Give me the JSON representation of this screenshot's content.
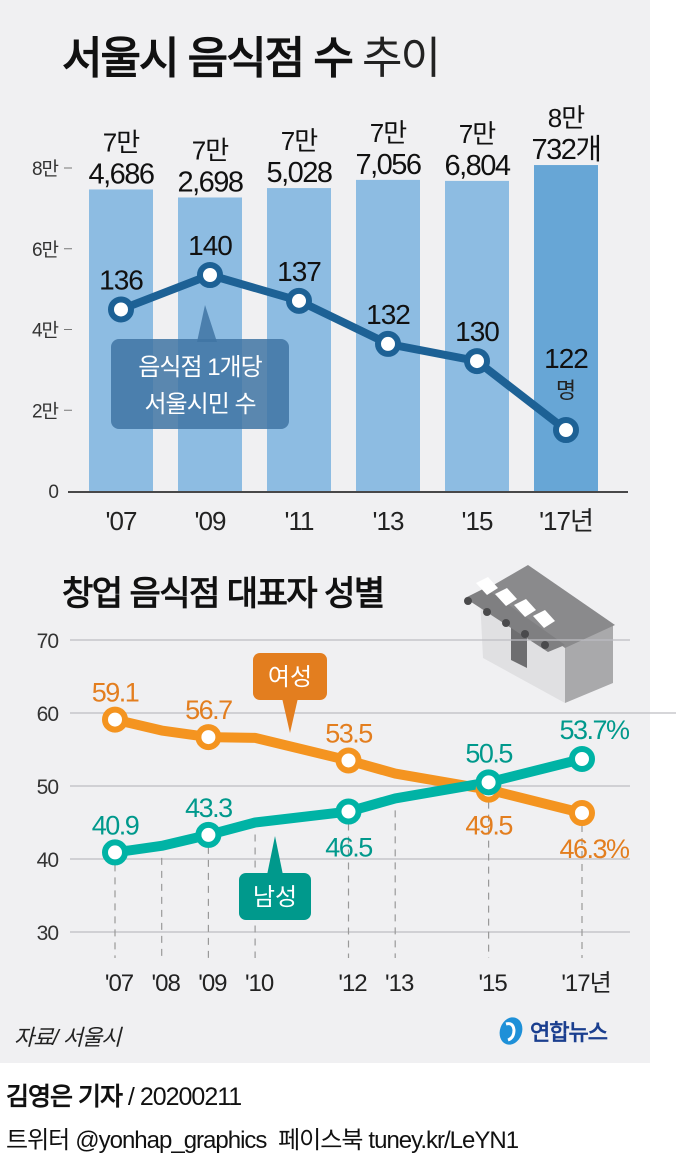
{
  "header": {
    "title_bold": "서울시 음식점 수",
    "title_light": "추이",
    "subtitle": "창업 음식점 대표자 성별"
  },
  "colors": {
    "panel_bg": "#f0f0f2",
    "bar": "#8dbce2",
    "bar_highlight": "#67a6d6",
    "line_blue": "#1d6195",
    "annotation_box": "#3f74a3",
    "female_orange": "#f49420",
    "female_label": "#e37e1f",
    "male_teal": "#00b3a5",
    "male_label": "#00998c",
    "grid": "#bdbdc2"
  },
  "chart_data": [
    {
      "type": "bar",
      "title": "서울시 음식점 수 추이",
      "categories": [
        "'07",
        "'09",
        "'11",
        "'13",
        "'15",
        "'17년"
      ],
      "values": [
        74686,
        72698,
        75028,
        77056,
        76804,
        80732
      ],
      "value_labels": [
        [
          "7만",
          "4,686"
        ],
        [
          "7만",
          "2,698"
        ],
        [
          "7만",
          "5,028"
        ],
        [
          "7만",
          "7,056"
        ],
        [
          "7만",
          "6,804"
        ],
        [
          "8만",
          "732개"
        ]
      ],
      "highlight_index": 5,
      "ylim": [
        0,
        80000
      ],
      "yticks": [
        0,
        20000,
        40000,
        60000,
        80000
      ],
      "ytick_labels": [
        "0",
        "2만",
        "4만",
        "6만",
        "8만"
      ],
      "xlabel": "",
      "ylabel": "",
      "overlay_line": {
        "name": "음식점 1개당 서울시민 수",
        "label_lines": [
          "음식점 1개당",
          "서울시민 수"
        ],
        "values": [
          136,
          140,
          137,
          132,
          130,
          122
        ],
        "value_labels": [
          "136",
          "140",
          "137",
          "132",
          "130",
          "122"
        ],
        "unit_label": "명"
      }
    },
    {
      "type": "line",
      "title": "창업 음식점 대표자 성별",
      "x": [
        2007,
        2008,
        2009,
        2010,
        2012,
        2013,
        2015,
        2017
      ],
      "x_tick_labels": [
        "'07",
        "'08",
        "'09",
        "'10",
        "'12",
        "'13",
        "'15",
        "'17년"
      ],
      "ylim": [
        30,
        70
      ],
      "yticks": [
        30,
        40,
        50,
        60,
        70
      ],
      "ytick_labels": [
        "30",
        "40",
        "50",
        "60",
        "70"
      ],
      "grid": true,
      "series": [
        {
          "name": "여성",
          "values": [
            59.1,
            57.6,
            56.7,
            56.6,
            53.5,
            51.7,
            49.5,
            46.3
          ],
          "marker_indices": [
            0,
            2,
            4,
            6,
            7
          ],
          "value_labels": [
            "59.1",
            "56.7",
            "53.5",
            "49.5",
            "46.3%"
          ]
        },
        {
          "name": "남성",
          "values": [
            40.9,
            41.8,
            43.3,
            45.0,
            46.5,
            48.3,
            50.5,
            53.7
          ],
          "marker_indices": [
            0,
            2,
            4,
            6,
            7
          ],
          "value_labels": [
            "40.9",
            "43.3",
            "46.5",
            "50.5",
            "53.7%"
          ]
        }
      ]
    }
  ],
  "footer": {
    "source": "자료/ 서울시",
    "logo_text": "연합뉴스",
    "reporter": "김영은 기자",
    "date_sep": "/",
    "date": "20200211",
    "twitter_label": "트위터",
    "twitter_handle": "@yonhap_graphics",
    "facebook_label": "페이스북",
    "facebook_url": "tuney.kr/LeYN1"
  },
  "icons": {
    "store": "store-icon",
    "logo": "yonhap-logo-icon"
  }
}
